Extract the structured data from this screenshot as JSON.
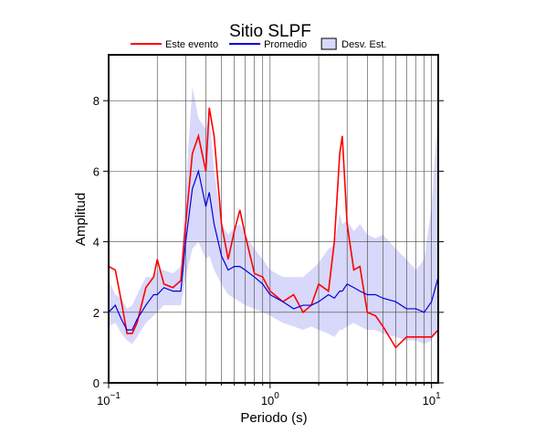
{
  "chart_data": {
    "type": "line",
    "title": "Sitio SLPF",
    "x_label": "Periodo (s)",
    "y_label": "Amplitud",
    "log_x": true,
    "grid": true,
    "xlim": [
      0.1,
      11
    ],
    "ylim": [
      0,
      9.3
    ],
    "xticks": [
      {
        "value": 0.1,
        "label": "10",
        "exponent": "−1"
      },
      {
        "value": 1,
        "label": "10",
        "exponent": "0"
      },
      {
        "value": 10,
        "label": "10",
        "exponent": "1"
      }
    ],
    "xminor": [
      0.2,
      0.3,
      0.4,
      0.5,
      0.6,
      0.7,
      0.8,
      0.9,
      2,
      3,
      4,
      5,
      6,
      7,
      8,
      9
    ],
    "yticks": [
      0,
      2,
      4,
      6,
      8
    ],
    "x": [
      0.1,
      0.11,
      0.12,
      0.13,
      0.14,
      0.15,
      0.17,
      0.19,
      0.2,
      0.22,
      0.25,
      0.28,
      0.3,
      0.33,
      0.36,
      0.4,
      0.42,
      0.45,
      0.5,
      0.55,
      0.6,
      0.65,
      0.7,
      0.8,
      0.9,
      1.0,
      1.2,
      1.4,
      1.6,
      1.8,
      2.0,
      2.3,
      2.5,
      2.7,
      2.8,
      3.0,
      3.3,
      3.6,
      4.0,
      4.5,
      5,
      6,
      7,
      8,
      9,
      10,
      11
    ],
    "band": {
      "name": "Desv. Est.",
      "color": "#d8d8fa",
      "lower": [
        1.6,
        1.7,
        1.4,
        1.2,
        1.1,
        1.3,
        1.7,
        1.9,
        2.0,
        2.2,
        2.2,
        2.2,
        3.0,
        3.8,
        4.0,
        3.5,
        3.6,
        3.2,
        2.8,
        2.5,
        2.4,
        2.3,
        2.2,
        2.1,
        2.0,
        1.9,
        1.7,
        1.6,
        1.5,
        1.6,
        1.5,
        1.4,
        1.3,
        1.5,
        1.5,
        1.6,
        1.7,
        1.6,
        1.5,
        1.5,
        1.4,
        1.3,
        1.2,
        1.2,
        1.1,
        1.2,
        1.5
      ],
      "upper": [
        2.9,
        2.5,
        2.4,
        2.1,
        2.2,
        2.5,
        3.0,
        3.0,
        3.2,
        3.2,
        3.1,
        3.3,
        5.5,
        8.4,
        7.5,
        7.2,
        7.6,
        6.0,
        4.5,
        4.2,
        4.4,
        4.5,
        4.2,
        3.8,
        3.5,
        3.2,
        3.0,
        3.0,
        3.0,
        3.2,
        3.4,
        3.8,
        3.9,
        4.8,
        4.5,
        4.6,
        4.3,
        4.5,
        4.2,
        4.1,
        4.2,
        3.8,
        3.5,
        3.2,
        3.5,
        5.0,
        7.8
      ]
    },
    "series": [
      {
        "name": "Este evento",
        "color": "#ff0000",
        "values": [
          3.3,
          3.2,
          2.3,
          1.4,
          1.4,
          1.7,
          2.7,
          3.0,
          3.5,
          2.8,
          2.7,
          2.9,
          4.5,
          6.5,
          7.0,
          6.0,
          7.8,
          7.0,
          4.5,
          3.5,
          4.3,
          4.9,
          4.2,
          3.1,
          3.0,
          2.6,
          2.3,
          2.5,
          2.0,
          2.2,
          2.8,
          2.6,
          4.0,
          6.5,
          7.0,
          4.5,
          3.2,
          3.3,
          2.0,
          1.9,
          1.6,
          1.0,
          1.3,
          1.3,
          1.3,
          1.3,
          1.5
        ]
      },
      {
        "name": "Promedio",
        "color": "#0000dd",
        "values": [
          2.0,
          2.2,
          1.8,
          1.5,
          1.5,
          1.8,
          2.2,
          2.5,
          2.5,
          2.7,
          2.6,
          2.6,
          4.0,
          5.5,
          6.0,
          5.0,
          5.4,
          4.5,
          3.6,
          3.2,
          3.3,
          3.3,
          3.2,
          3.0,
          2.8,
          2.5,
          2.3,
          2.1,
          2.2,
          2.2,
          2.3,
          2.5,
          2.4,
          2.6,
          2.6,
          2.8,
          2.7,
          2.6,
          2.5,
          2.5,
          2.4,
          2.3,
          2.1,
          2.1,
          2.0,
          2.3,
          3.0
        ]
      }
    ]
  }
}
